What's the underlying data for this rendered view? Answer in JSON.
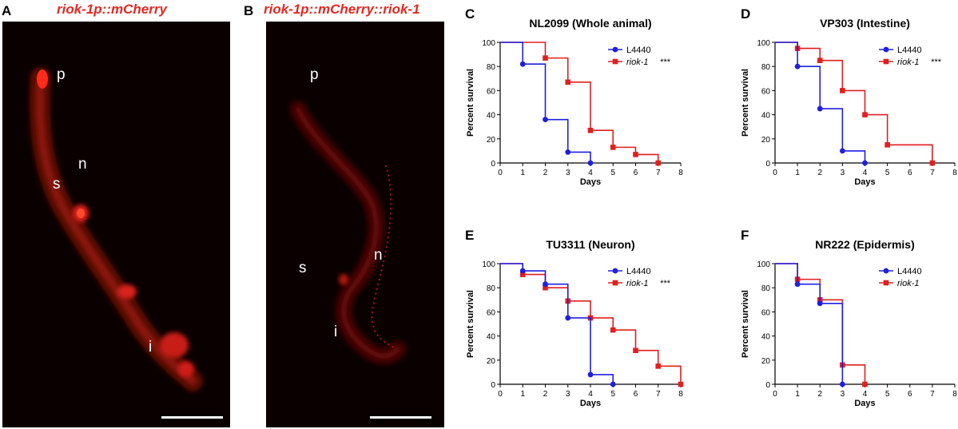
{
  "micrographs": [
    {
      "letter": "A",
      "title": "riok-1p::mCherry",
      "labels": [
        "p",
        "n",
        "s",
        "i"
      ]
    },
    {
      "letter": "B",
      "title": "riok-1p::mCherry::riok-1",
      "labels": [
        "p",
        "s",
        "n",
        "i"
      ]
    }
  ],
  "colors": {
    "control": "#1f1fe0",
    "treatment": "#e01f1f",
    "micro_red": "#ff2a1a"
  },
  "chart_data": [
    {
      "letter": "C",
      "type": "line",
      "step": true,
      "title": "NL2099 (Whole animal)",
      "xlabel": "Days",
      "ylabel": "Percent survival",
      "xlim": [
        0,
        8
      ],
      "ylim": [
        0,
        100
      ],
      "xticks": [
        "0",
        "1",
        "2",
        "3",
        "4",
        "5",
        "6",
        "7",
        "8"
      ],
      "yticks": [
        "0",
        "20",
        "40",
        "60",
        "80",
        "100"
      ],
      "series": [
        {
          "name": "L4440",
          "suffix": "",
          "color": "#1f1fe0",
          "marker": "circle",
          "x": [
            0,
            1,
            2,
            3,
            4
          ],
          "y": [
            100,
            82,
            36,
            9,
            0
          ]
        },
        {
          "name": "riok-1",
          "suffix": "***",
          "color": "#e01f1f",
          "marker": "square",
          "x": [
            0,
            2,
            3,
            4,
            5,
            6,
            7
          ],
          "y": [
            100,
            87,
            67,
            27,
            13,
            7,
            0
          ]
        }
      ]
    },
    {
      "letter": "D",
      "type": "line",
      "step": true,
      "title": "VP303 (Intestine)",
      "xlabel": "Days",
      "ylabel": "Percent survival",
      "xlim": [
        0,
        8
      ],
      "ylim": [
        0,
        100
      ],
      "xticks": [
        "0",
        "1",
        "2",
        "3",
        "4",
        "5",
        "6",
        "7",
        "8"
      ],
      "yticks": [
        "0",
        "20",
        "40",
        "60",
        "80",
        "100"
      ],
      "series": [
        {
          "name": "L4440",
          "suffix": "",
          "color": "#1f1fe0",
          "marker": "circle",
          "x": [
            0,
            1,
            2,
            3,
            4
          ],
          "y": [
            100,
            80,
            45,
            10,
            0
          ]
        },
        {
          "name": "riok-1",
          "suffix": "***",
          "color": "#e01f1f",
          "marker": "square",
          "x": [
            0,
            1,
            2,
            3,
            4,
            5,
            7
          ],
          "y": [
            100,
            95,
            85,
            60,
            40,
            15,
            0
          ]
        }
      ]
    },
    {
      "letter": "E",
      "type": "line",
      "step": true,
      "title": "TU3311 (Neuron)",
      "xlabel": "Days",
      "ylabel": "Percent survival",
      "xlim": [
        0,
        8
      ],
      "ylim": [
        0,
        100
      ],
      "xticks": [
        "0",
        "1",
        "2",
        "3",
        "4",
        "5",
        "6",
        "7",
        "8"
      ],
      "yticks": [
        "0",
        "20",
        "40",
        "60",
        "80",
        "100"
      ],
      "series": [
        {
          "name": "L4440",
          "suffix": "",
          "color": "#1f1fe0",
          "marker": "circle",
          "x": [
            0,
            1,
            2,
            3,
            4,
            5
          ],
          "y": [
            100,
            94,
            83,
            55,
            8,
            0
          ]
        },
        {
          "name": "riok-1",
          "suffix": "***",
          "color": "#e01f1f",
          "marker": "square",
          "x": [
            0,
            1,
            2,
            3,
            4,
            5,
            6,
            7,
            8
          ],
          "y": [
            100,
            91,
            80,
            69,
            55,
            45,
            28,
            15,
            0
          ]
        }
      ]
    },
    {
      "letter": "F",
      "type": "line",
      "step": true,
      "title": "NR222 (Epidermis)",
      "xlabel": "Days",
      "ylabel": "Percent survival",
      "xlim": [
        0,
        8
      ],
      "ylim": [
        0,
        100
      ],
      "xticks": [
        "0",
        "1",
        "2",
        "3",
        "4",
        "5",
        "6",
        "7",
        "8"
      ],
      "yticks": [
        "0",
        "20",
        "40",
        "60",
        "80",
        "100"
      ],
      "series": [
        {
          "name": "L4440",
          "suffix": "",
          "color": "#1f1fe0",
          "marker": "circle",
          "x": [
            0,
            1,
            2,
            3
          ],
          "y": [
            100,
            83,
            67,
            0
          ]
        },
        {
          "name": "riok-1",
          "suffix": "",
          "color": "#e01f1f",
          "marker": "square",
          "x": [
            0,
            1,
            2,
            3,
            4
          ],
          "y": [
            100,
            87,
            70,
            16,
            0
          ]
        }
      ]
    }
  ]
}
